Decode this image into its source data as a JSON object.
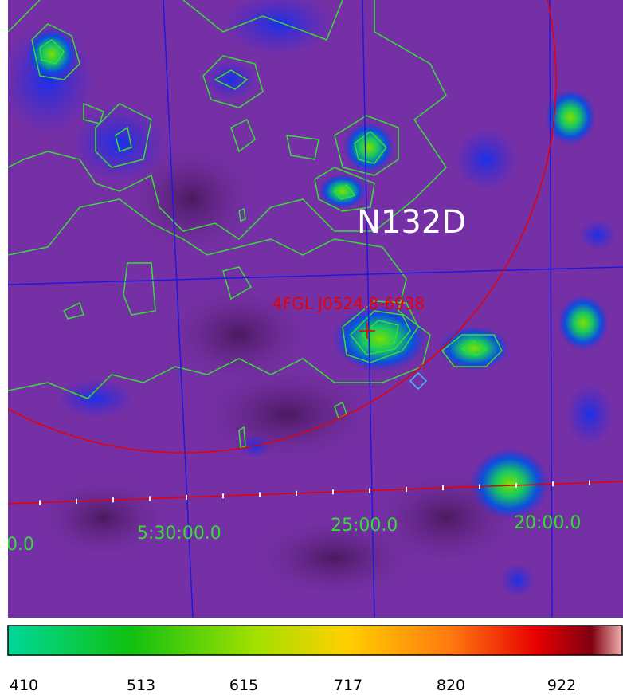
{
  "image": {
    "labels": {
      "source": "N132D",
      "catalog": "4FGL J0524.8-6938"
    },
    "axis_labels": [
      "0.0",
      "5:30:00.0",
      "25:00.0",
      "20:00.0"
    ]
  },
  "colorbar": {
    "ticks": [
      410,
      513,
      615,
      717,
      820,
      922
    ]
  }
}
